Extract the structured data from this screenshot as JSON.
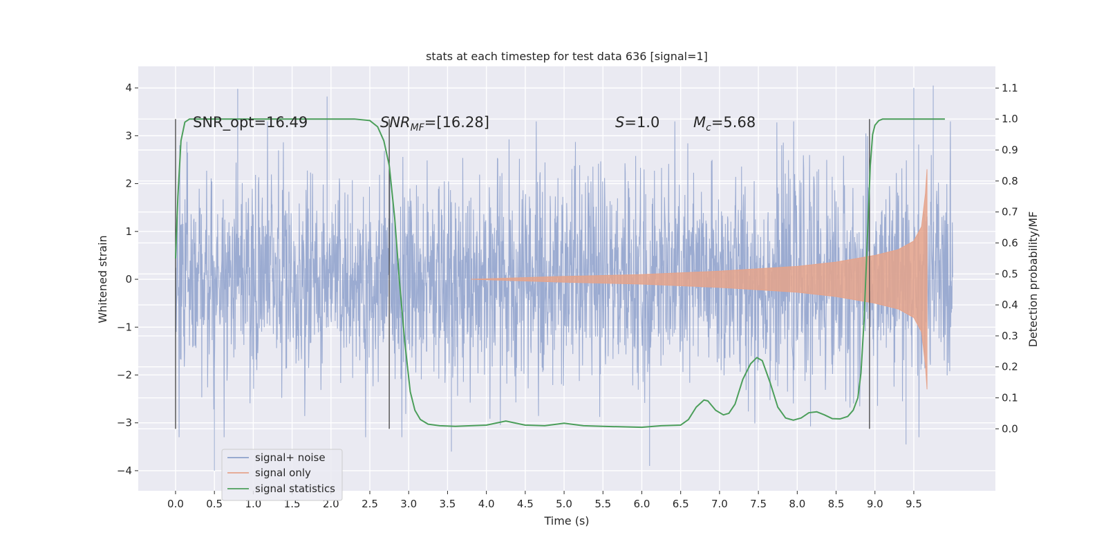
{
  "chart_data": {
    "type": "line",
    "title": "stats at each timestep for test data 636 [signal=1]",
    "xlabel": "Time (s)",
    "ylabel": "Whitened strain",
    "y2label": "Detection probability/MF",
    "xlim": [
      -0.48,
      10.55
    ],
    "ylim": [
      -4.42,
      4.45
    ],
    "y2lim": [
      -0.2,
      1.17
    ],
    "x_ticks": [
      "0.0",
      "0.5",
      "1.0",
      "1.5",
      "2.0",
      "2.5",
      "3.0",
      "3.5",
      "4.0",
      "4.5",
      "5.0",
      "5.5",
      "6.0",
      "6.5",
      "7.0",
      "7.5",
      "8.0",
      "8.5",
      "9.0",
      "9.5"
    ],
    "y_ticks": [
      "4",
      "3",
      "2",
      "1",
      "0",
      "−1",
      "−2",
      "−3",
      "−4"
    ],
    "y2_ticks": [
      "1.1",
      "1.0",
      "0.9",
      "0.8",
      "0.7",
      "0.6",
      "0.5",
      "0.4",
      "0.3",
      "0.2",
      "0.1",
      "0.0"
    ],
    "grid": true,
    "legend_position": "lower-left",
    "annotations": {
      "snr_opt": "SNR_opt=16.49",
      "snr_mf_main": "SNR",
      "snr_mf_sub": "MF",
      "snr_mf_value": "=[16.28]",
      "s_symbol": "S",
      "s_value": "=1.0",
      "mc_symbol": "M",
      "mc_sub": "c",
      "mc_value": "=5.68"
    },
    "vertical_markers_s": [
      0.0,
      2.75,
      8.93
    ],
    "series": [
      {
        "name": "signal+ noise",
        "color": "#8da0cb",
        "duration_s": 10.0,
        "noise_envelope": [
          [
            0.0,
            2.0
          ],
          [
            1.0,
            2.0
          ],
          [
            5.0,
            2.0
          ],
          [
            9.0,
            2.0
          ],
          [
            9.9,
            2.0
          ]
        ],
        "noise_peaks": [
          [
            0.8,
            3.98
          ],
          [
            1.95,
            3.82
          ],
          [
            9.5,
            4.0
          ],
          [
            9.75,
            4.05
          ],
          [
            6.1,
            -3.9
          ],
          [
            0.5,
            -4.0
          ],
          [
            3.55,
            -3.6
          ],
          [
            9.4,
            -3.45
          ]
        ]
      },
      {
        "name": "signal only",
        "color": "#e5a38b",
        "chirp_start_s": 3.8,
        "chirp_end_s": 9.67,
        "amplitude_envelope": [
          [
            3.8,
            0.0
          ],
          [
            5.0,
            0.06
          ],
          [
            6.0,
            0.1
          ],
          [
            7.0,
            0.17
          ],
          [
            8.0,
            0.27
          ],
          [
            8.5,
            0.36
          ],
          [
            9.0,
            0.5
          ],
          [
            9.3,
            0.62
          ],
          [
            9.5,
            0.8
          ],
          [
            9.6,
            1.1
          ],
          [
            9.65,
            1.8
          ],
          [
            9.67,
            2.3
          ]
        ]
      },
      {
        "name": "signal statistics",
        "color": "#4b9e5a",
        "x": [
          0.0,
          0.03,
          0.07,
          0.12,
          0.18,
          0.25,
          0.35,
          0.5,
          1.0,
          1.5,
          2.0,
          2.3,
          2.5,
          2.6,
          2.68,
          2.75,
          2.82,
          2.88,
          2.95,
          3.02,
          3.08,
          3.15,
          3.25,
          3.4,
          3.6,
          3.8,
          4.0,
          4.25,
          4.5,
          4.75,
          5.0,
          5.25,
          5.5,
          6.0,
          6.25,
          6.5,
          6.6,
          6.7,
          6.8,
          6.85,
          6.95,
          7.05,
          7.12,
          7.2,
          7.3,
          7.4,
          7.48,
          7.55,
          7.65,
          7.75,
          7.85,
          7.95,
          8.05,
          8.15,
          8.25,
          8.35,
          8.45,
          8.55,
          8.65,
          8.72,
          8.78,
          8.82,
          8.86,
          8.9,
          8.94,
          8.97,
          9.0,
          9.05,
          9.1,
          9.2,
          9.5,
          9.9
        ],
        "y": [
          0.55,
          0.75,
          0.93,
          0.99,
          1.0,
          1.0,
          1.0,
          1.0,
          1.0,
          1.0,
          1.0,
          1.0,
          0.995,
          0.975,
          0.93,
          0.85,
          0.68,
          0.48,
          0.28,
          0.12,
          0.06,
          0.03,
          0.015,
          0.01,
          0.008,
          0.01,
          0.012,
          0.025,
          0.012,
          0.01,
          0.018,
          0.01,
          0.008,
          0.005,
          0.01,
          0.012,
          0.03,
          0.07,
          0.093,
          0.09,
          0.06,
          0.045,
          0.05,
          0.08,
          0.16,
          0.21,
          0.23,
          0.22,
          0.15,
          0.07,
          0.035,
          0.028,
          0.035,
          0.052,
          0.055,
          0.045,
          0.033,
          0.032,
          0.04,
          0.06,
          0.1,
          0.18,
          0.35,
          0.6,
          0.85,
          0.95,
          0.98,
          0.995,
          1.0,
          1.0,
          1.0,
          1.0
        ]
      }
    ]
  }
}
